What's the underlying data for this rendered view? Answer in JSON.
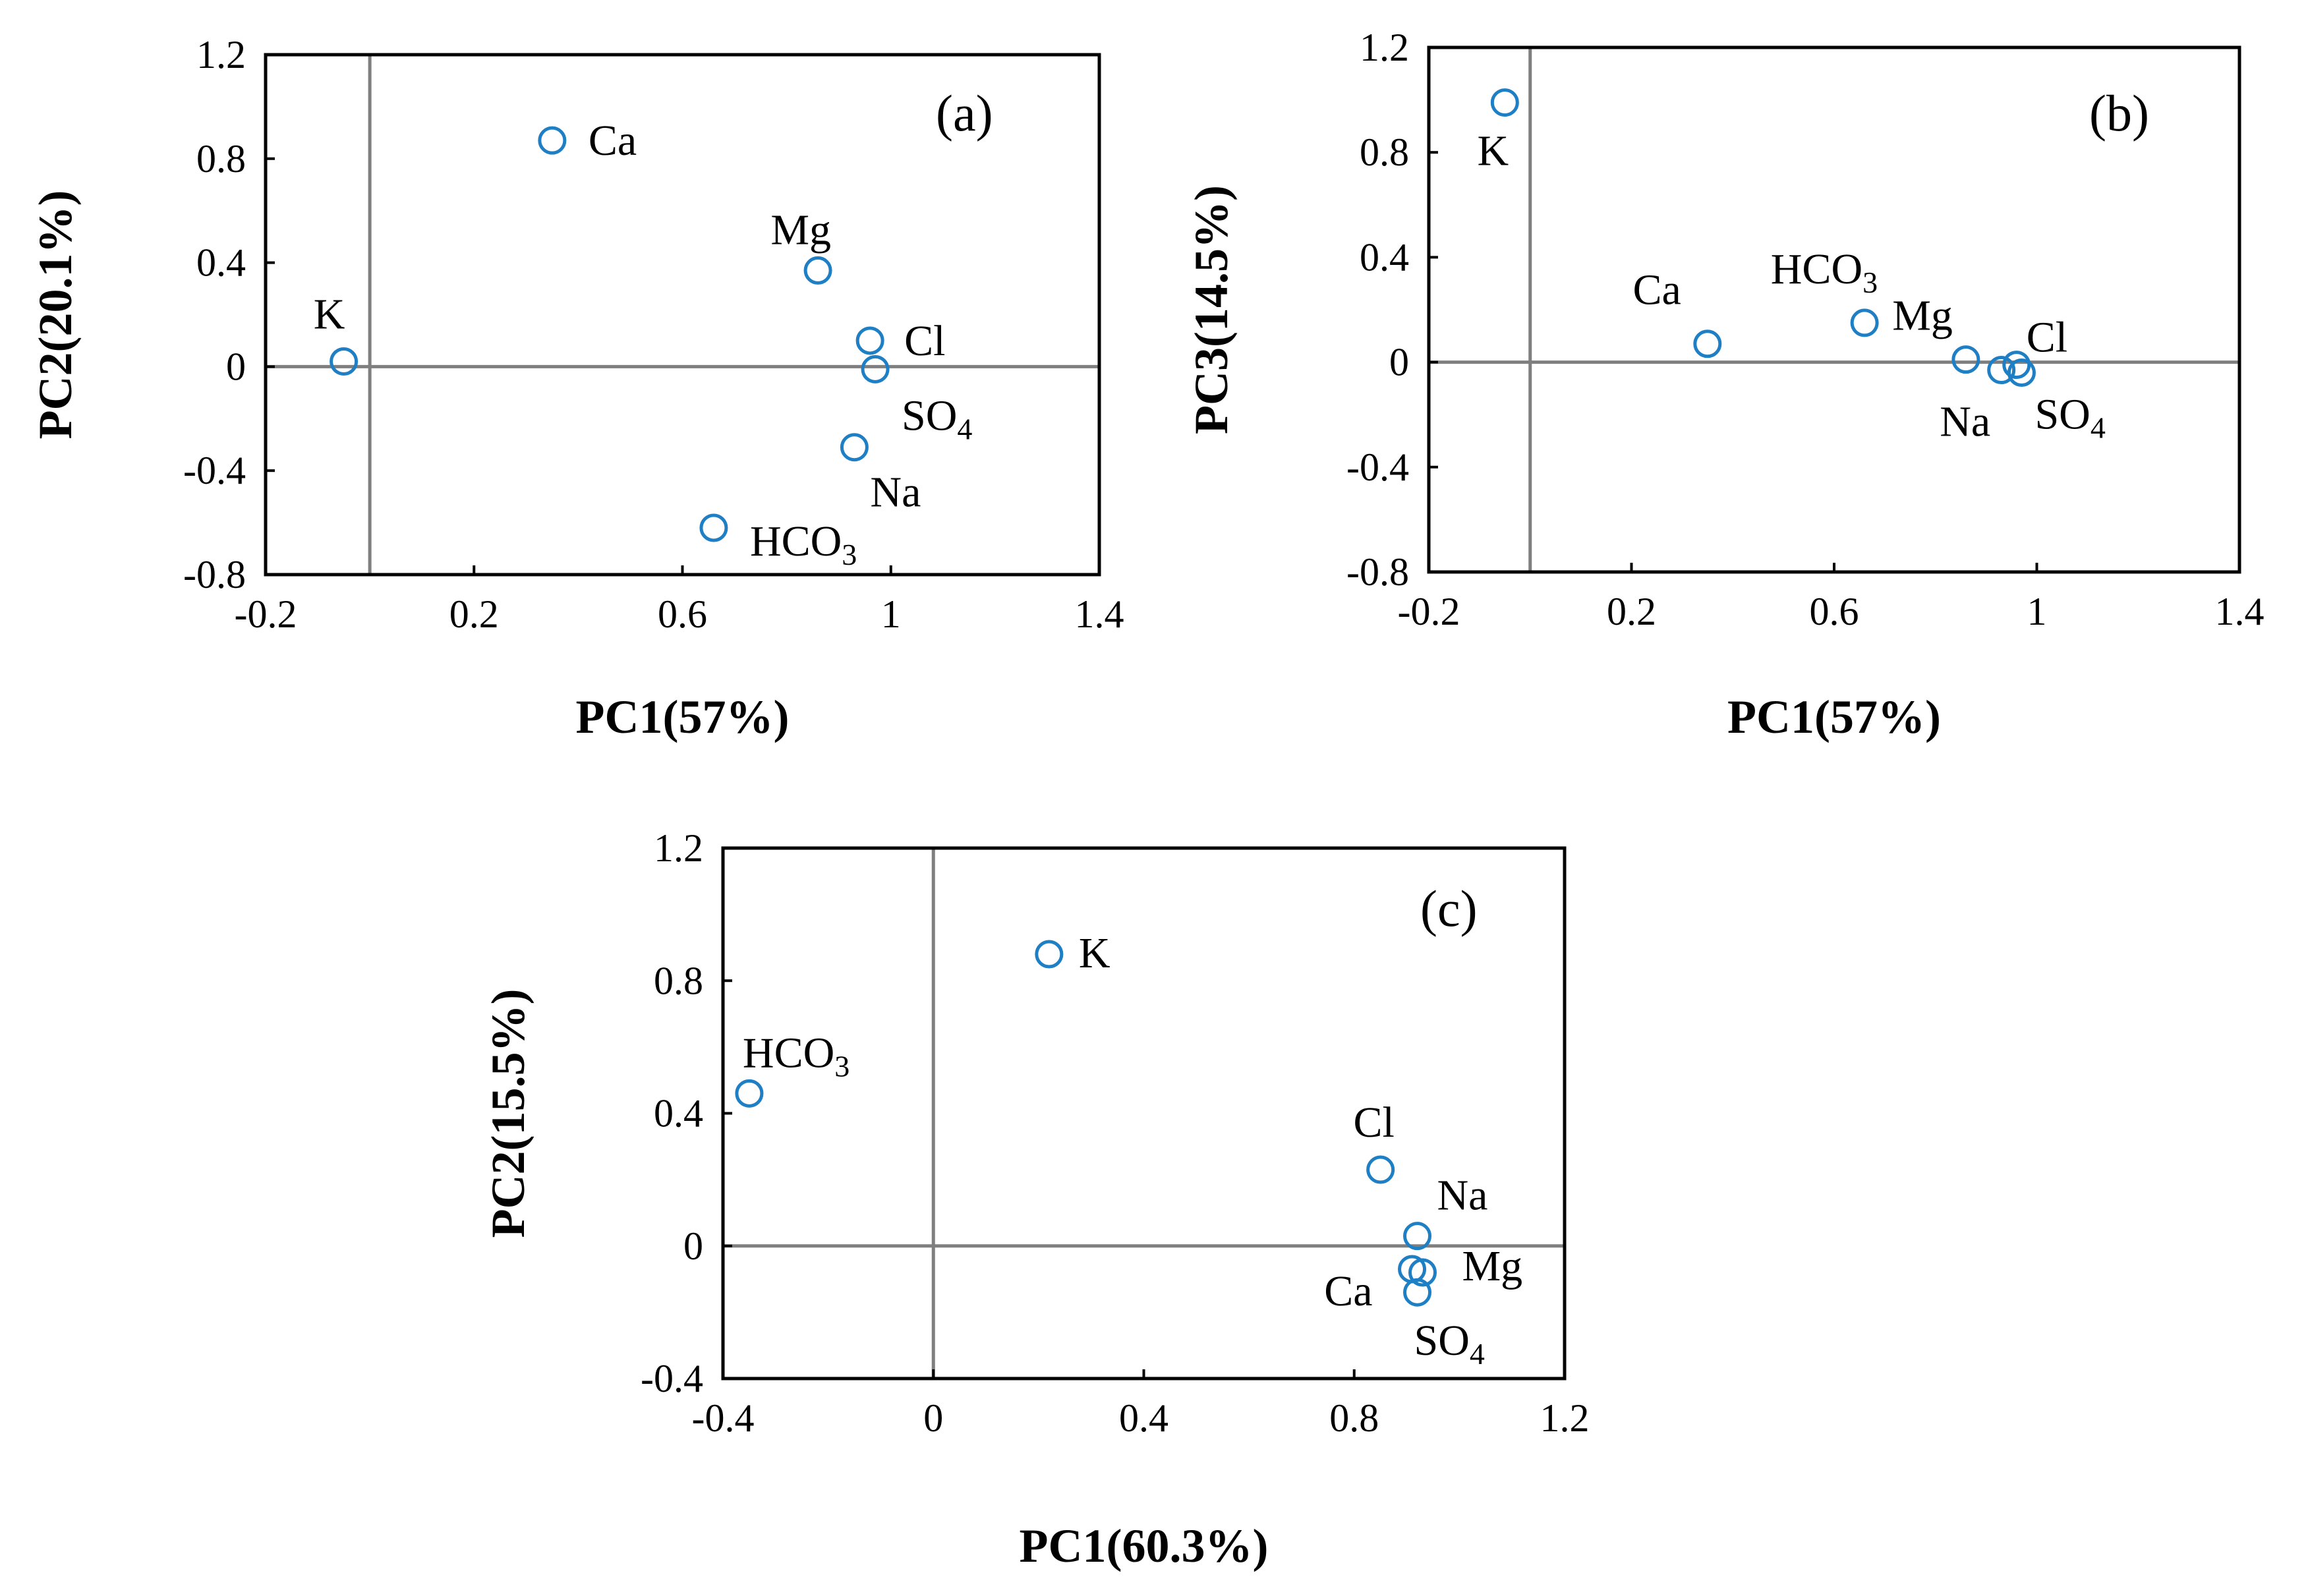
{
  "colors": {
    "marker": "#1f7fc4",
    "zero_line": "#7f7f7f",
    "frame": "#000000"
  },
  "chart_data": [
    {
      "type": "scatter",
      "panel_label": "(a)",
      "xlabel": "PC1(57%)",
      "ylabel": "PC2(20.1%)",
      "xlim": [
        -0.2,
        1.4
      ],
      "ylim": [
        -0.8,
        1.2
      ],
      "xticks": [
        "-0.2",
        "0.2",
        "0.6",
        "1",
        "1.4"
      ],
      "yticks": [
        "-0.8",
        "-0.4",
        "0",
        "0.4",
        "0.8",
        "1.2"
      ],
      "grid": false,
      "points": [
        {
          "label": "Ca",
          "sub": "",
          "x": 0.35,
          "y": 0.87
        },
        {
          "label": "Mg",
          "sub": "",
          "x": 0.86,
          "y": 0.37
        },
        {
          "label": "K",
          "sub": "",
          "x": -0.05,
          "y": 0.02
        },
        {
          "label": "Cl",
          "sub": "",
          "x": 0.96,
          "y": 0.1
        },
        {
          "label": "SO",
          "sub": "4",
          "x": 0.97,
          "y": -0.01
        },
        {
          "label": "Na",
          "sub": "",
          "x": 0.93,
          "y": -0.31
        },
        {
          "label": "HCO",
          "sub": "3",
          "x": 0.66,
          "y": -0.62
        }
      ]
    },
    {
      "type": "scatter",
      "panel_label": "(b)",
      "xlabel": "PC1(57%)",
      "ylabel": "PC3(14.5%)",
      "xlim": [
        -0.2,
        1.4
      ],
      "ylim": [
        -0.8,
        1.2
      ],
      "xticks": [
        "-0.2",
        "0.2",
        "0.6",
        "1",
        "1.4"
      ],
      "yticks": [
        "-0.8",
        "-0.4",
        "0",
        "0.4",
        "0.8",
        "1.2"
      ],
      "grid": false,
      "points": [
        {
          "label": "K",
          "sub": "",
          "x": -0.05,
          "y": 0.99
        },
        {
          "label": "Ca",
          "sub": "",
          "x": 0.35,
          "y": 0.07
        },
        {
          "label": "HCO",
          "sub": "3",
          "x": 0.66,
          "y": 0.15
        },
        {
          "label": "Mg",
          "sub": "",
          "x": 0.86,
          "y": 0.01
        },
        {
          "label": "Cl",
          "sub": "",
          "x": 0.96,
          "y": -0.01
        },
        {
          "label": "Na",
          "sub": "",
          "x": 0.93,
          "y": -0.03
        },
        {
          "label": "SO",
          "sub": "4",
          "x": 0.97,
          "y": -0.04
        }
      ]
    },
    {
      "type": "scatter",
      "panel_label": "(c)",
      "xlabel": "PC1(60.3%)",
      "ylabel": "PC2(15.5%)",
      "xlim": [
        -0.4,
        1.2
      ],
      "ylim": [
        -0.4,
        1.2
      ],
      "xticks": [
        "-0.4",
        "0",
        "0.4",
        "0.8",
        "1.2"
      ],
      "yticks": [
        "-0.4",
        "0",
        "0.4",
        "0.8",
        "1.2"
      ],
      "grid": false,
      "points": [
        {
          "label": "K",
          "sub": "",
          "x": 0.22,
          "y": 0.88
        },
        {
          "label": "HCO",
          "sub": "3",
          "x": -0.35,
          "y": 0.46
        },
        {
          "label": "Cl",
          "sub": "",
          "x": 0.85,
          "y": 0.23
        },
        {
          "label": "Na",
          "sub": "",
          "x": 0.92,
          "y": 0.03
        },
        {
          "label": "Mg",
          "sub": "",
          "x": 0.93,
          "y": -0.08
        },
        {
          "label": "Ca",
          "sub": "",
          "x": 0.91,
          "y": -0.07
        },
        {
          "label": "SO",
          "sub": "4",
          "x": 0.92,
          "y": -0.14
        }
      ]
    }
  ]
}
